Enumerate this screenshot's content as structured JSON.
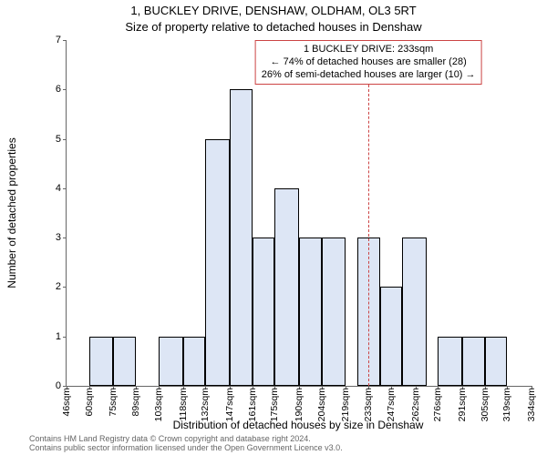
{
  "title_line1": "1, BUCKLEY DRIVE, DENSHAW, OLDHAM, OL3 5RT",
  "title_line2": "Size of property relative to detached houses in Denshaw",
  "ylabel": "Number of detached properties",
  "xlabel": "Distribution of detached houses by size in Denshaw",
  "footer_line1": "Contains HM Land Registry data © Crown copyright and database right 2024.",
  "footer_line2": "Contains public sector information licensed under the Open Government Licence v3.0.",
  "chart": {
    "type": "histogram",
    "background_color": "#ffffff",
    "bar_fill": "#dde6f5",
    "bar_border": "#000000",
    "axis_color": "#666666",
    "ylim": [
      0,
      7
    ],
    "ytick_step": 1,
    "yticks": [
      0,
      1,
      2,
      3,
      4,
      5,
      6,
      7
    ],
    "xtick_labels": [
      "46sqm",
      "60sqm",
      "75sqm",
      "89sqm",
      "103sqm",
      "118sqm",
      "132sqm",
      "147sqm",
      "161sqm",
      "175sqm",
      "190sqm",
      "204sqm",
      "219sqm",
      "233sqm",
      "247sqm",
      "262sqm",
      "276sqm",
      "291sqm",
      "305sqm",
      "319sqm",
      "334sqm"
    ],
    "xtick_values": [
      46,
      60,
      75,
      89,
      103,
      118,
      132,
      147,
      161,
      175,
      190,
      204,
      219,
      233,
      247,
      262,
      276,
      291,
      305,
      319,
      334
    ],
    "xmin": 46,
    "xmax": 334,
    "bars": [
      {
        "x0": 60,
        "x1": 75,
        "y": 1
      },
      {
        "x0": 75,
        "x1": 89,
        "y": 1
      },
      {
        "x0": 103,
        "x1": 118,
        "y": 1
      },
      {
        "x0": 118,
        "x1": 132,
        "y": 1
      },
      {
        "x0": 132,
        "x1": 147,
        "y": 5
      },
      {
        "x0": 147,
        "x1": 161,
        "y": 6
      },
      {
        "x0": 161,
        "x1": 175,
        "y": 3
      },
      {
        "x0": 175,
        "x1": 190,
        "y": 4
      },
      {
        "x0": 190,
        "x1": 204,
        "y": 3
      },
      {
        "x0": 204,
        "x1": 219,
        "y": 3
      },
      {
        "x0": 226,
        "x1": 240,
        "y": 3
      },
      {
        "x0": 240,
        "x1": 254,
        "y": 2
      },
      {
        "x0": 254,
        "x1": 269,
        "y": 3
      },
      {
        "x0": 276,
        "x1": 291,
        "y": 1
      },
      {
        "x0": 291,
        "x1": 305,
        "y": 1
      },
      {
        "x0": 305,
        "x1": 319,
        "y": 1
      }
    ],
    "marker": {
      "x": 233,
      "top_y": 6.1,
      "color": "#cc4444"
    },
    "annotation": {
      "line1": "1 BUCKLEY DRIVE: 233sqm",
      "line2": "← 74% of detached houses are smaller (28)",
      "line3": "26% of semi-detached houses are larger (10) →",
      "border_color": "#cc4444",
      "bg_color": "#ffffff",
      "fontsize": 11,
      "x_center": 233,
      "y_top": 7
    },
    "title_fontsize": 13,
    "label_fontsize": 12,
    "tick_fontsize": 11,
    "footer_fontsize": 9,
    "footer_color": "#666666"
  }
}
